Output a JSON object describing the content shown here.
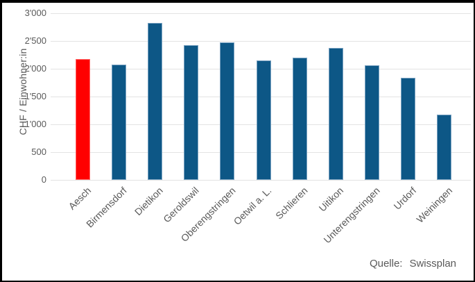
{
  "chart_data": {
    "type": "bar",
    "title": "",
    "xlabel": "",
    "ylabel": "CHF / Einwohner:in",
    "categories": [
      "Aesch",
      "Birmensdorf",
      "Dietikon",
      "Geroldswil",
      "Oberengstringen",
      "Oetwil a. L.",
      "Schlieren",
      "Uitikon",
      "Unterengstringen",
      "Urdorf",
      "Weiningen"
    ],
    "values": [
      2180,
      2080,
      2830,
      2430,
      2470,
      2150,
      2200,
      2370,
      2060,
      1840,
      1180
    ],
    "ylim": [
      0,
      3000
    ],
    "ytick_step": 500,
    "ytick_labels": [
      "0",
      "500",
      "1'000",
      "1'500",
      "2'000",
      "2'500",
      "3'000"
    ],
    "grid": true,
    "legend": false,
    "highlight_index": 0,
    "bar_color": "#0d5786",
    "bar_border_color": "#7ba3c2",
    "highlight_color": "#ff0000",
    "highlight_border_color": "#ff6a6a",
    "gridline_color": "#e3e3e3",
    "text_color": "#595959"
  },
  "source": {
    "label": "Quelle:",
    "value": "Swissplan"
  }
}
